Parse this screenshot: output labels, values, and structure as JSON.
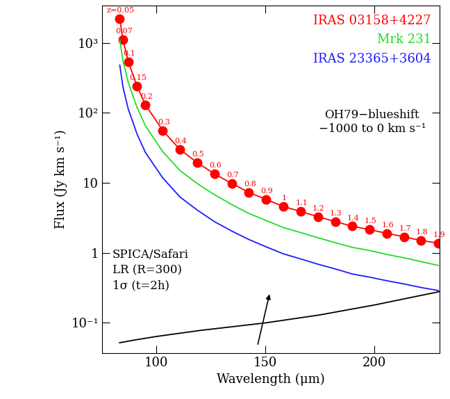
{
  "chart_data": {
    "type": "line",
    "x_label": "Wavelength (μm)",
    "y_label": "Flux (Jy km s⁻¹)",
    "log": "y",
    "legend": "upper right",
    "xlim": [
      75,
      230
    ],
    "ylim": [
      0.037,
      3400
    ],
    "xticks": [
      100,
      150,
      200
    ],
    "yticks": [
      {
        "value": 0.1,
        "label": "10⁻¹"
      },
      1,
      10,
      {
        "value": 100,
        "label": "10²"
      },
      {
        "value": 1000,
        "label": "10³"
      }
    ],
    "annotations": [
      "OH79−blueshift\n−1000 to 0 km s⁻¹"
    ],
    "series": [
      {
        "name": "IRAS 03158+4227",
        "color": "#ff0000",
        "marker": "circle",
        "line_style": "solid",
        "x": [
          83.1,
          84.6,
          87.0,
          91.0,
          94.9,
          102.8,
          110.7,
          118.6,
          126.5,
          134.5,
          142.4,
          150.3,
          158.2,
          166.1,
          174.0,
          182.0,
          189.8,
          197.8,
          205.7,
          213.6,
          221.5,
          229.4
        ],
        "values": [
          2200,
          1100,
          540,
          240,
          130,
          56,
          30,
          19.5,
          13.5,
          9.8,
          7.3,
          5.8,
          4.6,
          3.9,
          3.3,
          2.8,
          2.4,
          2.15,
          1.9,
          1.7,
          1.5,
          1.38
        ],
        "point_labels": [
          "z=0.05",
          "0.07",
          "0.1",
          "0.15",
          "0.2",
          "0.3",
          "0.4",
          "0.5",
          "0.6",
          "0.7",
          "0.8",
          "0.9",
          "1",
          "1.1",
          "1.2",
          "1.3",
          "1.4",
          "1.5",
          "1.6",
          "1.7",
          "1.8",
          "1.9"
        ]
      },
      {
        "name": "Mrk 231",
        "color": "#22dd22",
        "marker": "none",
        "line_style": "solid",
        "x": [
          83.1,
          84.6,
          87.0,
          91.0,
          94.9,
          102.8,
          110.7,
          118.6,
          126.5,
          134.5,
          142.4,
          150.3,
          158.2,
          166.1,
          174.0,
          182.0,
          189.8,
          197.8,
          205.7,
          213.6,
          221.5,
          229.4
        ],
        "values": [
          1100,
          550,
          270,
          120,
          65,
          28,
          15,
          9.8,
          6.8,
          4.9,
          3.65,
          2.9,
          2.3,
          1.95,
          1.65,
          1.4,
          1.2,
          1.08,
          0.95,
          0.85,
          0.75,
          0.66
        ]
      },
      {
        "name": "IRAS 23365+3604",
        "color": "#1a1aff",
        "marker": "none",
        "line_style": "solid",
        "x": [
          83.1,
          84.6,
          87.0,
          91.0,
          94.9,
          102.8,
          110.7,
          118.6,
          126.5,
          134.5,
          142.4,
          150.3,
          158.2,
          166.1,
          174.0,
          182.0,
          189.8,
          197.8,
          205.7,
          213.6,
          221.5,
          229.4
        ],
        "values": [
          480,
          230,
          113,
          50,
          27,
          11.8,
          6.3,
          4.1,
          2.8,
          2.05,
          1.55,
          1.22,
          0.97,
          0.82,
          0.69,
          0.59,
          0.5,
          0.45,
          0.4,
          0.36,
          0.32,
          0.29
        ]
      },
      {
        "name": "SPICA/Safari\nLR (R=300)\n1σ (t=2h)",
        "color": "#000000",
        "marker": "none",
        "line_style": "solid",
        "x": [
          83,
          90,
          100,
          120,
          150,
          175,
          200,
          230
        ],
        "values": [
          0.052,
          0.057,
          0.064,
          0.078,
          0.1,
          0.13,
          0.18,
          0.28
        ]
      }
    ]
  }
}
